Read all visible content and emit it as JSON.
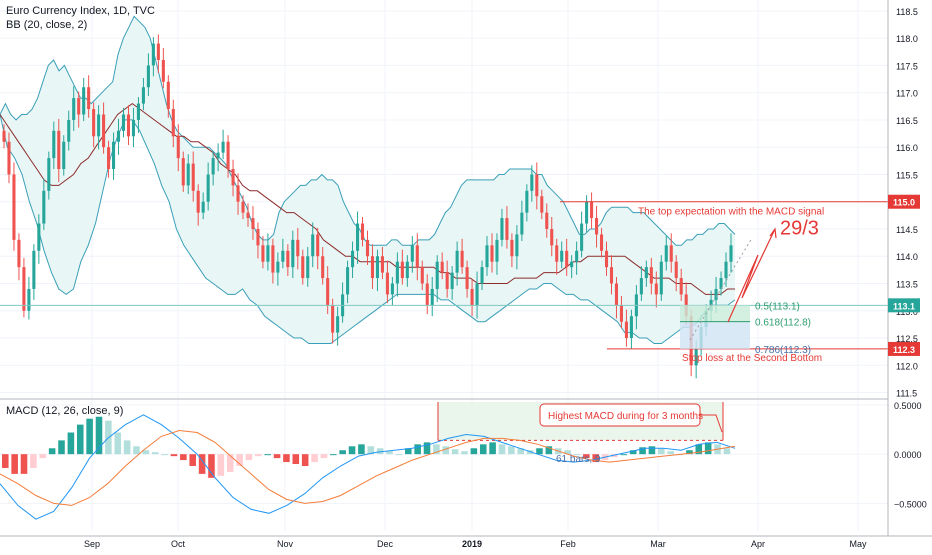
{
  "header": {
    "symbol_line": "Euro Currency Index, 1D, TVC",
    "bb_line": "BB (20, close, 2)"
  },
  "macd_pane": {
    "label": "MACD (12, 26, close, 9)"
  },
  "colors": {
    "up": "#26a69a",
    "down": "#ef5350",
    "up_light": "#b2dfdb",
    "down_light": "#ffcdd2",
    "bb_band": "#3a9fb8",
    "bb_fill": "#e8f6f5",
    "bb_basis": "#8d2c2c",
    "macd_line": "#2196f3",
    "signal_line": "#f57c3a",
    "annotation_red": "#e53935",
    "fib_green": "#2e9e6e",
    "fib_blue": "#4a6fa5",
    "axis_text": "#131722",
    "divider": "#b2b5be"
  },
  "chart_data": [
    {
      "type": "candlestick",
      "title": "Euro Currency Index, 1D, TVC",
      "indicator": "BB (20, close, 2)",
      "ylim": [
        111.4,
        118.7
      ],
      "yticks": [
        111.5,
        112.0,
        112.5,
        113.0,
        113.5,
        114.0,
        114.5,
        115.0,
        115.5,
        116.0,
        116.5,
        117.0,
        117.5,
        118.0,
        118.5
      ],
      "ytick_labels": [
        "111.5",
        "112.0",
        "112.5",
        "113.0",
        "113.5",
        "114.0",
        "114.5",
        "115.0",
        "115.5",
        "116.0",
        "116.5",
        "117.0",
        "117.5",
        "118.0",
        "118.5"
      ],
      "x_labels": [
        "Sep",
        "Oct",
        "Nov",
        "Dec",
        "2019",
        "Feb",
        "Mar",
        "Apr",
        "May"
      ],
      "close_series": [
        116.1,
        115.5,
        114.3,
        113.8,
        113.0,
        113.4,
        114.1,
        114.6,
        115.2,
        115.8,
        116.3,
        115.6,
        116.1,
        116.5,
        116.9,
        116.6,
        117.1,
        116.7,
        116.2,
        116.6,
        116.0,
        115.6,
        116.1,
        116.3,
        116.6,
        116.2,
        116.5,
        116.8,
        117.1,
        117.5,
        117.9,
        117.6,
        117.2,
        116.7,
        116.2,
        115.8,
        115.3,
        115.7,
        115.2,
        114.8,
        115.0,
        115.5,
        115.8,
        115.9,
        116.1,
        115.6,
        115.3,
        115.0,
        114.8,
        114.7,
        114.5,
        114.2,
        113.9,
        114.2,
        113.7,
        113.9,
        114.1,
        113.8,
        114.3,
        114.0,
        113.6,
        114.0,
        114.4,
        114.0,
        113.6,
        113.1,
        112.6,
        112.9,
        113.3,
        113.8,
        114.1,
        114.6,
        114.3,
        114.0,
        113.6,
        114.0,
        113.7,
        113.3,
        113.5,
        113.9,
        113.6,
        113.9,
        114.2,
        113.8,
        113.5,
        113.1,
        113.4,
        113.9,
        113.7,
        113.4,
        113.7,
        114.1,
        113.8,
        113.4,
        113.1,
        113.5,
        113.8,
        114.2,
        113.9,
        114.3,
        114.7,
        114.3,
        114.0,
        114.4,
        114.8,
        115.2,
        115.5,
        115.1,
        114.8,
        114.5,
        114.2,
        113.9,
        114.1,
        113.8,
        113.9,
        114.1,
        114.6,
        115.0,
        114.7,
        114.4,
        114.1,
        113.8,
        113.5,
        113.1,
        112.8,
        112.5,
        112.9,
        113.3,
        113.6,
        113.8,
        113.5,
        113.3,
        113.9,
        114.2,
        113.9,
        113.6,
        113.3,
        112.9,
        112.0,
        112.3,
        112.7,
        113.0,
        113.2,
        113.4,
        113.6,
        113.9,
        114.2
      ],
      "series": [
        {
          "name": "BB upper",
          "values": [
            116.6,
            116.8,
            116.6,
            116.5,
            116.6,
            116.6,
            116.7,
            116.9,
            117.2,
            117.5,
            117.6,
            117.4,
            117.5,
            117.3,
            117.1,
            116.9,
            116.9,
            116.8,
            116.9,
            117.0,
            117.1,
            117.2,
            117.7,
            118.0,
            118.2,
            118.4,
            118.3,
            118.2,
            118.0,
            117.6,
            117.2,
            116.8,
            116.5,
            116.3,
            116.2,
            116.1,
            116.0,
            116.0,
            116.0,
            116.0,
            115.9,
            115.8,
            115.7,
            115.5,
            115.3,
            115.1,
            114.9,
            114.6,
            114.4,
            114.3,
            114.3,
            114.4,
            114.8,
            115.0,
            115.1,
            115.2,
            115.3,
            115.3,
            115.4,
            115.4,
            115.5,
            115.4,
            115.4,
            115.3,
            115.0,
            114.8,
            114.6,
            114.5,
            114.3,
            114.2,
            114.2,
            114.2,
            114.2,
            114.3,
            114.3,
            114.2,
            114.2,
            114.2,
            114.3,
            114.3,
            114.3,
            114.4,
            114.6,
            114.8,
            114.9,
            115.1,
            115.3,
            115.4,
            115.4,
            115.4,
            115.4,
            115.4,
            115.4,
            115.5,
            115.5,
            115.6,
            115.6,
            115.6,
            115.6,
            115.6,
            115.5,
            115.5,
            115.3,
            115.2,
            115.1,
            115.0,
            114.8,
            114.6,
            114.4,
            114.4,
            114.5,
            114.5,
            114.6,
            114.8,
            114.9,
            114.9,
            114.9,
            114.9,
            114.8,
            114.8,
            114.8,
            114.7,
            114.6,
            114.5,
            114.4,
            114.3,
            114.2,
            114.2,
            114.3,
            114.3,
            114.4,
            114.4,
            114.5,
            114.5,
            114.6,
            114.6,
            114.5,
            114.4
          ]
        },
        {
          "name": "BB basis",
          "values": [
            116.6,
            116.4,
            116.2,
            116.0,
            115.8,
            115.6,
            115.4,
            115.3,
            115.3,
            115.4,
            115.5,
            115.7,
            115.8,
            116.0,
            116.2,
            116.4,
            116.6,
            116.7,
            116.8,
            116.7,
            116.6,
            116.5,
            116.4,
            116.3,
            116.2,
            116.2,
            116.1,
            116.1,
            116.0,
            115.9,
            115.7,
            115.6,
            115.5,
            115.3,
            115.2,
            115.2,
            115.1,
            115.0,
            114.9,
            114.8,
            114.8,
            114.7,
            114.6,
            114.5,
            114.3,
            114.2,
            114.1,
            114.0,
            114.0,
            113.9,
            113.9,
            113.9,
            113.9,
            113.9,
            113.8,
            113.8,
            113.8,
            113.8,
            113.8,
            113.8,
            113.7,
            113.7,
            113.6,
            113.6,
            113.6,
            113.5,
            113.5,
            113.5,
            113.5,
            113.5,
            113.6,
            113.6,
            113.6,
            113.6,
            113.7,
            113.7,
            113.7,
            113.8,
            113.9,
            113.9,
            114.0,
            114.0,
            114.0,
            114.0,
            114.0,
            114.0,
            113.9,
            113.8,
            113.7,
            113.6,
            113.6,
            113.6,
            113.5,
            113.5,
            113.5,
            113.4,
            113.3,
            113.3,
            113.3,
            113.4,
            113.4
          ]
        },
        {
          "name": "BB lower",
          "values": [
            116.6,
            116.0,
            115.8,
            115.5,
            115.0,
            114.6,
            114.1,
            113.7,
            113.4,
            113.3,
            113.4,
            113.9,
            114.2,
            114.6,
            115.2,
            115.8,
            116.2,
            116.5,
            116.5,
            116.3,
            116.0,
            115.7,
            115.3,
            115.0,
            114.5,
            114.2,
            114.0,
            113.8,
            113.6,
            113.5,
            113.4,
            113.3,
            113.3,
            113.4,
            113.2,
            113.1,
            112.9,
            112.8,
            112.7,
            112.6,
            112.5,
            112.5,
            112.4,
            112.4,
            112.4,
            112.4,
            112.5,
            112.6,
            112.7,
            112.8,
            112.9,
            113.0,
            113.1,
            113.2,
            113.3,
            113.3,
            113.3,
            113.3,
            113.3,
            113.3,
            113.2,
            113.2,
            113.1,
            113.0,
            112.9,
            112.8,
            112.8,
            112.9,
            113.0,
            113.1,
            113.2,
            113.3,
            113.4,
            113.4,
            113.5,
            113.5,
            113.4,
            113.3,
            113.3,
            113.2,
            113.2,
            113.1,
            113.0,
            112.9,
            112.8,
            112.6,
            112.6,
            112.5,
            112.5,
            112.4,
            112.4,
            112.5,
            112.6,
            112.7,
            112.7,
            112.8,
            113.0,
            113.1,
            113.1,
            113.1,
            113.2
          ]
        }
      ],
      "price_labels": [
        {
          "value": 115.0,
          "label": "115.0"
        },
        {
          "value": 113.1,
          "label": "113.1"
        },
        {
          "value": 112.3,
          "label": "112.3"
        }
      ],
      "annotations": [
        {
          "text": "The top expectation with the MACD signal"
        },
        {
          "text": "29/3"
        },
        {
          "text": "0.5(113.1)"
        },
        {
          "text": "0.618(112.8)"
        },
        {
          "text": "0.786(112.3)"
        },
        {
          "text": "Stop loss at the Second Bottom"
        }
      ]
    },
    {
      "type": "macd",
      "title": "MACD (12, 26, close, 9)",
      "ylim": [
        -0.78,
        0.55
      ],
      "yticks": [
        -0.5,
        0.0,
        0.5
      ],
      "ytick_labels": [
        "−0.5000",
        "0.0000",
        "0.5000"
      ],
      "histogram": [
        -0.14,
        -0.2,
        -0.2,
        -0.14,
        -0.04,
        0.06,
        0.14,
        0.22,
        0.3,
        0.36,
        0.38,
        0.34,
        0.22,
        0.14,
        0.08,
        0.04,
        0.02,
        0.0,
        -0.02,
        -0.06,
        -0.12,
        -0.2,
        -0.24,
        -0.22,
        -0.18,
        -0.12,
        -0.06,
        -0.02,
        0.0,
        -0.04,
        -0.08,
        -0.1,
        -0.12,
        -0.08,
        -0.04,
        0.0,
        0.04,
        0.08,
        0.1,
        0.08,
        0.06,
        0.03,
        0.0,
        0.06,
        0.1,
        0.12,
        0.1,
        0.08,
        0.05,
        0.03,
        0.06,
        0.1,
        0.12,
        0.1,
        0.08,
        0.06,
        0.04,
        0.06,
        0.08,
        0.06,
        0.04,
        0.0,
        -0.04,
        -0.08,
        -0.06,
        -0.03,
        0.0,
        0.04,
        0.07,
        0.08,
        0.06,
        0.03,
        0.0,
        0.04,
        0.1,
        0.12,
        0.1,
        0.06
      ],
      "series": [
        {
          "name": "MACD",
          "values": [
            -0.3,
            -0.52,
            -0.66,
            -0.58,
            -0.34,
            -0.04,
            0.16,
            0.3,
            0.4,
            0.3,
            0.16,
            0.0,
            -0.24,
            -0.44,
            -0.56,
            -0.6,
            -0.52,
            -0.4,
            -0.24,
            -0.12,
            -0.02,
            0.02,
            0.04,
            0.06,
            0.1,
            0.16,
            0.2,
            0.18,
            0.12,
            0.06,
            0.0,
            -0.06,
            -0.08,
            -0.06,
            -0.02,
            0.02,
            0.06,
            0.06,
            0.04,
            0.1,
            0.12,
            0.06
          ]
        },
        {
          "name": "Signal",
          "values": [
            -0.2,
            -0.3,
            -0.42,
            -0.5,
            -0.52,
            -0.44,
            -0.3,
            -0.12,
            0.04,
            0.18,
            0.24,
            0.22,
            0.12,
            -0.04,
            -0.2,
            -0.36,
            -0.46,
            -0.5,
            -0.48,
            -0.42,
            -0.32,
            -0.22,
            -0.14,
            -0.06,
            0.0,
            0.06,
            0.12,
            0.16,
            0.16,
            0.14,
            0.1,
            0.04,
            -0.02,
            -0.06,
            -0.08,
            -0.06,
            -0.04,
            -0.02,
            0.0,
            0.02,
            0.05,
            0.08
          ]
        }
      ],
      "annotations": [
        {
          "text": "Highest MACD during for 3 months"
        },
        {
          "text": "61 bars, 9"
        }
      ]
    }
  ]
}
